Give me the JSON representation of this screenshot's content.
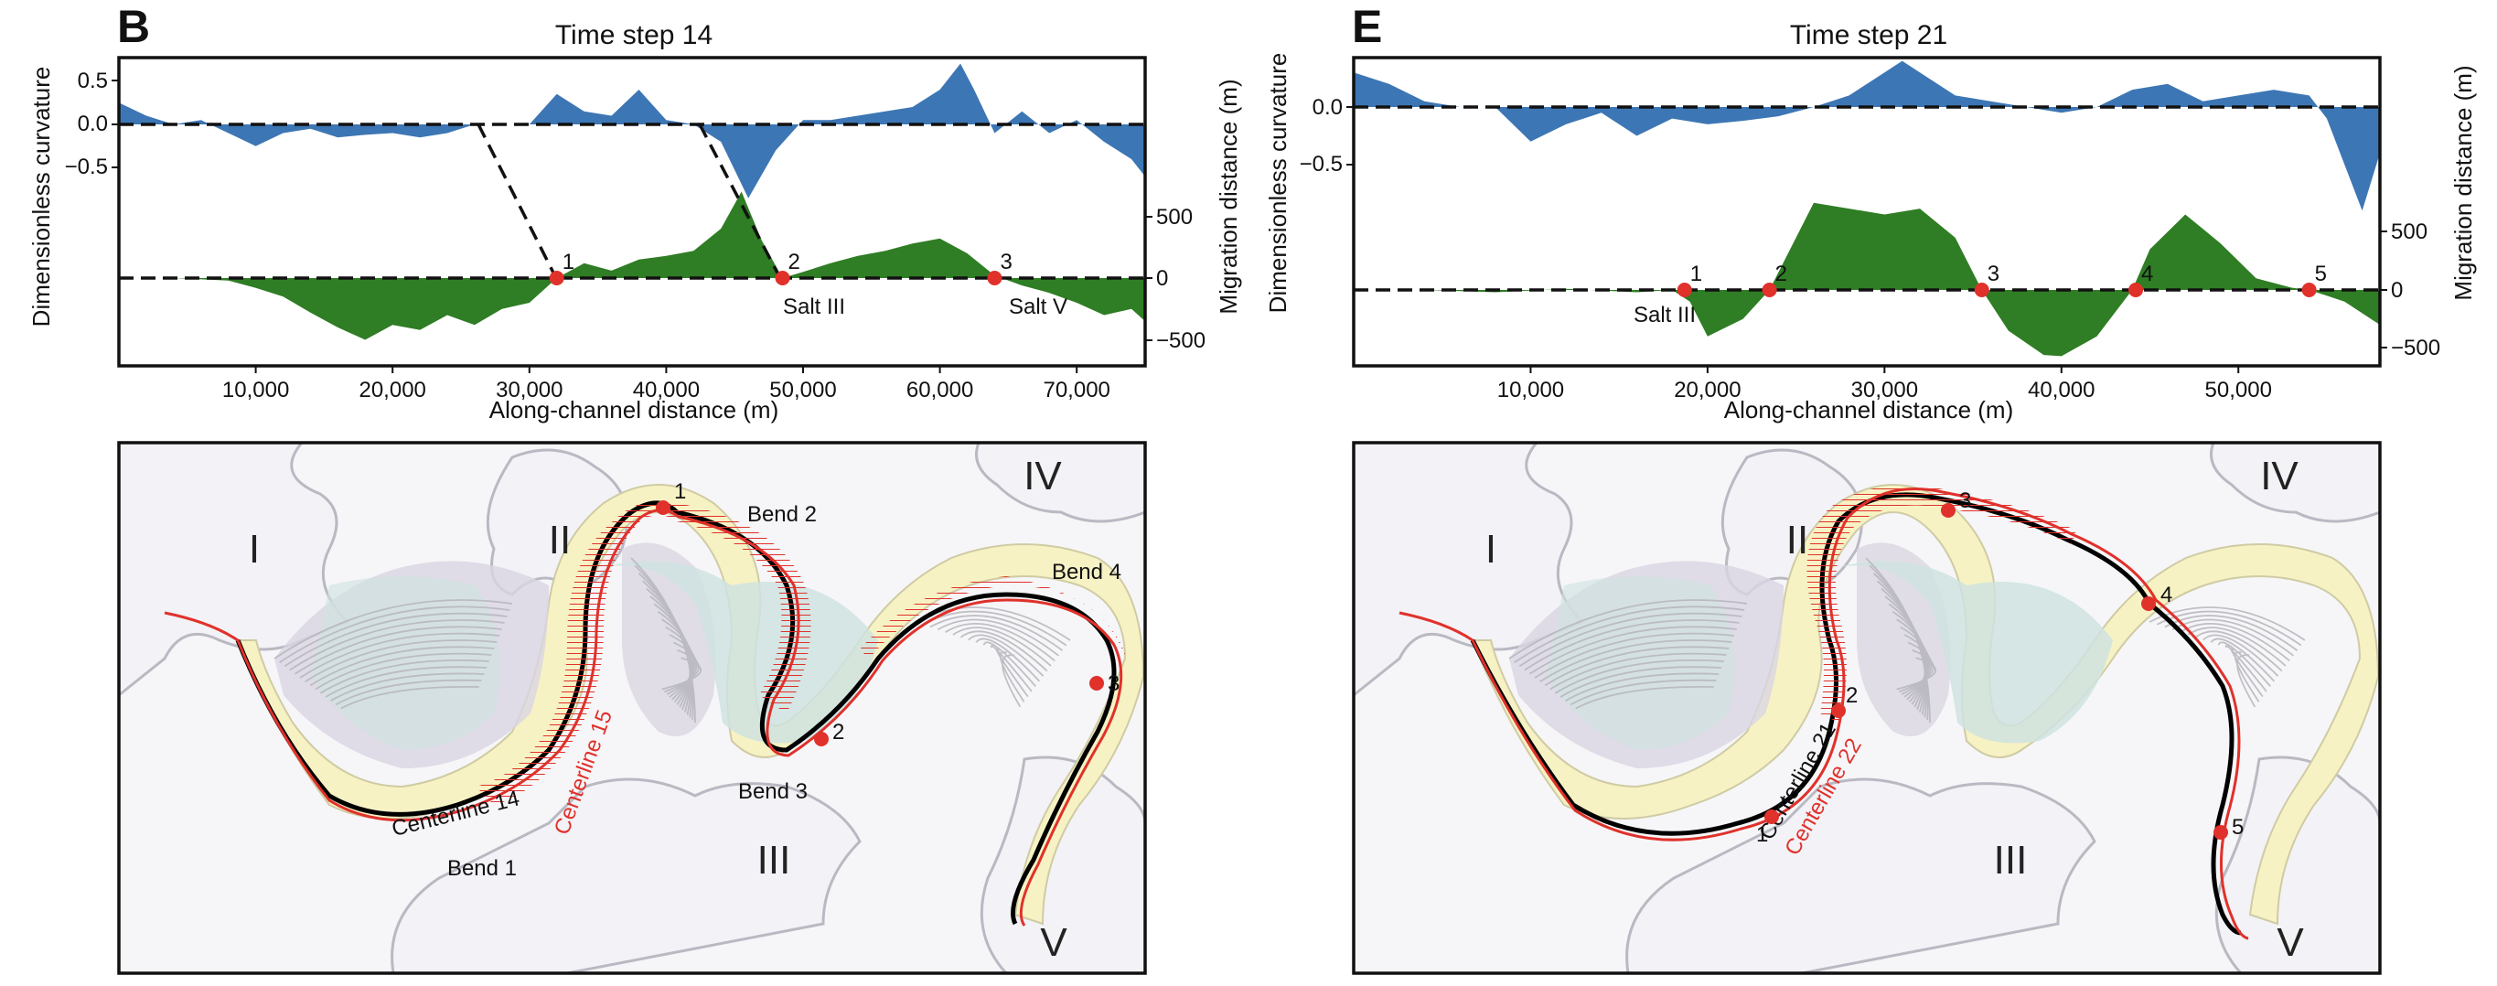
{
  "colors": {
    "curvature": "#3d76b4",
    "migration": "#2f7d24",
    "marker": "#e0312b",
    "centerline_old": "#000000",
    "centerline_new": "#e0312b",
    "salt_fill": "#f3f2f6",
    "salt_edge": "#b9b9c3",
    "pointbar": "#f7f2c4",
    "scroll_teal": "#cfe3e0",
    "scroll_purple": "#d9d4e2"
  },
  "panels": [
    {
      "letter": "B",
      "title": "Time step 14",
      "curvature_ticks": [
        "0.5",
        "0.0",
        "−0.5"
      ],
      "migration_ticks": [
        "500",
        "0",
        "−500"
      ],
      "x_ticks": [
        "10,000",
        "20,000",
        "30,000",
        "40,000",
        "50,000",
        "60,000",
        "70,000"
      ],
      "markers": [
        "1",
        "2",
        "3"
      ],
      "salt_labels": [
        "Salt III",
        "Salt V"
      ],
      "map": {
        "romans": [
          "I",
          "II",
          "III",
          "IV",
          "V"
        ],
        "bends": [
          "Bend 1",
          "Bend 2",
          "Bend 3",
          "Bend 4"
        ],
        "centerline_old": "Centerline 14",
        "centerline_new": "Centerline 15",
        "points": [
          "1",
          "2",
          "3"
        ]
      }
    },
    {
      "letter": "E",
      "title": "Time step 21",
      "curvature_ticks": [
        "0.0",
        "−0.5"
      ],
      "migration_ticks": [
        "500",
        "0",
        "−500"
      ],
      "x_ticks": [
        "10,000",
        "20,000",
        "30,000",
        "40,000",
        "50,000"
      ],
      "markers": [
        "1",
        "2",
        "3",
        "4",
        "5"
      ],
      "salt_labels": [
        "Salt III"
      ],
      "map": {
        "romans": [
          "I",
          "II",
          "III",
          "IV",
          "V"
        ],
        "centerline_old": "Centerline 21",
        "centerline_new": "Centerline 22",
        "points": [
          "1",
          "2",
          "3",
          "4",
          "5"
        ]
      }
    }
  ],
  "axis_labels": {
    "y_left": "Dimensionless curvature",
    "y_right": "Migration distance (m)",
    "x": "Along-channel distance (m)"
  },
  "chart_data": [
    {
      "type": "area",
      "title": "Time step 14",
      "xlabel": "Along-channel distance (m)",
      "ylabel_left": "Dimensionless curvature",
      "ylabel_right": "Migration distance (m)",
      "xlim": [
        0,
        75000
      ],
      "curvature_ylim": [
        -0.9,
        0.75
      ],
      "migration_ylim": [
        -600,
        1000
      ],
      "series": [
        {
          "name": "curvature",
          "x": [
            0,
            2000,
            4000,
            6000,
            8000,
            10000,
            12000,
            14000,
            16000,
            18000,
            20000,
            22000,
            24000,
            26000,
            28000,
            30000,
            32000,
            34000,
            36000,
            38000,
            40000,
            42000,
            44000,
            46000,
            48000,
            50000,
            52000,
            54000,
            56000,
            58000,
            60000,
            61500,
            62500,
            64000,
            66000,
            68000,
            70000,
            72000,
            74000,
            75000
          ],
          "values": [
            0.25,
            0.1,
            0.0,
            0.05,
            -0.1,
            -0.25,
            -0.1,
            -0.05,
            -0.15,
            -0.12,
            -0.1,
            -0.15,
            -0.1,
            0.0,
            0.0,
            0.0,
            0.35,
            0.15,
            0.1,
            0.4,
            0.05,
            0.0,
            -0.2,
            -0.85,
            -0.3,
            0.05,
            0.05,
            0.1,
            0.15,
            0.2,
            0.4,
            0.7,
            0.4,
            -0.1,
            0.15,
            -0.1,
            0.05,
            -0.2,
            -0.4,
            -0.6
          ]
        },
        {
          "name": "migration",
          "x": [
            0,
            4000,
            8000,
            10000,
            12000,
            14000,
            16000,
            18000,
            20000,
            22000,
            24000,
            26000,
            28000,
            30000,
            32000,
            34000,
            36000,
            38000,
            40000,
            42000,
            44000,
            45500,
            47000,
            48500,
            50000,
            52000,
            54000,
            56000,
            58000,
            60000,
            62000,
            64000,
            66000,
            68000,
            70000,
            72000,
            74000,
            75000
          ],
          "values": [
            0,
            0,
            -20,
            -80,
            -150,
            -280,
            -400,
            -500,
            -380,
            -420,
            -300,
            -380,
            -250,
            -200,
            0,
            120,
            60,
            150,
            180,
            220,
            400,
            700,
            300,
            0,
            50,
            120,
            180,
            220,
            280,
            320,
            200,
            20,
            -60,
            -120,
            -200,
            -300,
            -250,
            -350
          ]
        }
      ],
      "markers": [
        {
          "label": "1",
          "x": 32000,
          "y": 0
        },
        {
          "label": "2",
          "x": 48500,
          "y": 0,
          "annotation": "Salt III"
        },
        {
          "label": "3",
          "x": 64000,
          "y": 0,
          "annotation": "Salt V"
        }
      ]
    },
    {
      "type": "area",
      "title": "Time step 21",
      "xlabel": "Along-channel distance (m)",
      "ylabel_left": "Dimensionless curvature",
      "ylabel_right": "Migration distance (m)",
      "xlim": [
        0,
        58000
      ],
      "curvature_ylim": [
        -1.1,
        0.45
      ],
      "migration_ylim": [
        -600,
        900
      ],
      "series": [
        {
          "name": "curvature",
          "x": [
            0,
            2000,
            4000,
            6000,
            8000,
            10000,
            12000,
            14000,
            16000,
            18000,
            20000,
            22000,
            24000,
            26000,
            28000,
            30000,
            31000,
            32000,
            34000,
            36000,
            38000,
            40000,
            42000,
            44000,
            46000,
            48000,
            50000,
            52000,
            54000,
            55000,
            56000,
            57000,
            58000
          ],
          "values": [
            0.3,
            0.2,
            0.05,
            0.0,
            0.0,
            -0.3,
            -0.15,
            -0.05,
            -0.25,
            -0.1,
            -0.15,
            -0.12,
            -0.08,
            0.0,
            0.1,
            0.3,
            0.4,
            0.3,
            0.1,
            0.05,
            0.0,
            -0.05,
            0.0,
            0.15,
            0.2,
            0.05,
            0.1,
            0.15,
            0.1,
            -0.1,
            -0.5,
            -0.9,
            -0.4
          ]
        },
        {
          "name": "migration",
          "x": [
            0,
            4000,
            8000,
            12000,
            16000,
            18000,
            19000,
            20000,
            22000,
            23500,
            24500,
            26000,
            28000,
            30000,
            32000,
            34000,
            35500,
            37000,
            39000,
            40000,
            42000,
            44000,
            45000,
            47000,
            49000,
            51000,
            53000,
            54000,
            56000,
            58000
          ],
          "values": [
            0,
            0,
            -20,
            10,
            -20,
            0,
            -100,
            -400,
            -250,
            0,
            300,
            750,
            700,
            650,
            700,
            450,
            0,
            -350,
            -560,
            -570,
            -400,
            0,
            350,
            650,
            400,
            100,
            20,
            0,
            -100,
            -300
          ]
        }
      ],
      "markers": [
        {
          "label": "1",
          "x": 18700,
          "y": 0,
          "annotation": "Salt III"
        },
        {
          "label": "2",
          "x": 23500,
          "y": 0
        },
        {
          "label": "3",
          "x": 35500,
          "y": 0
        },
        {
          "label": "4",
          "x": 44200,
          "y": 0
        },
        {
          "label": "5",
          "x": 54000,
          "y": 0
        }
      ]
    }
  ]
}
